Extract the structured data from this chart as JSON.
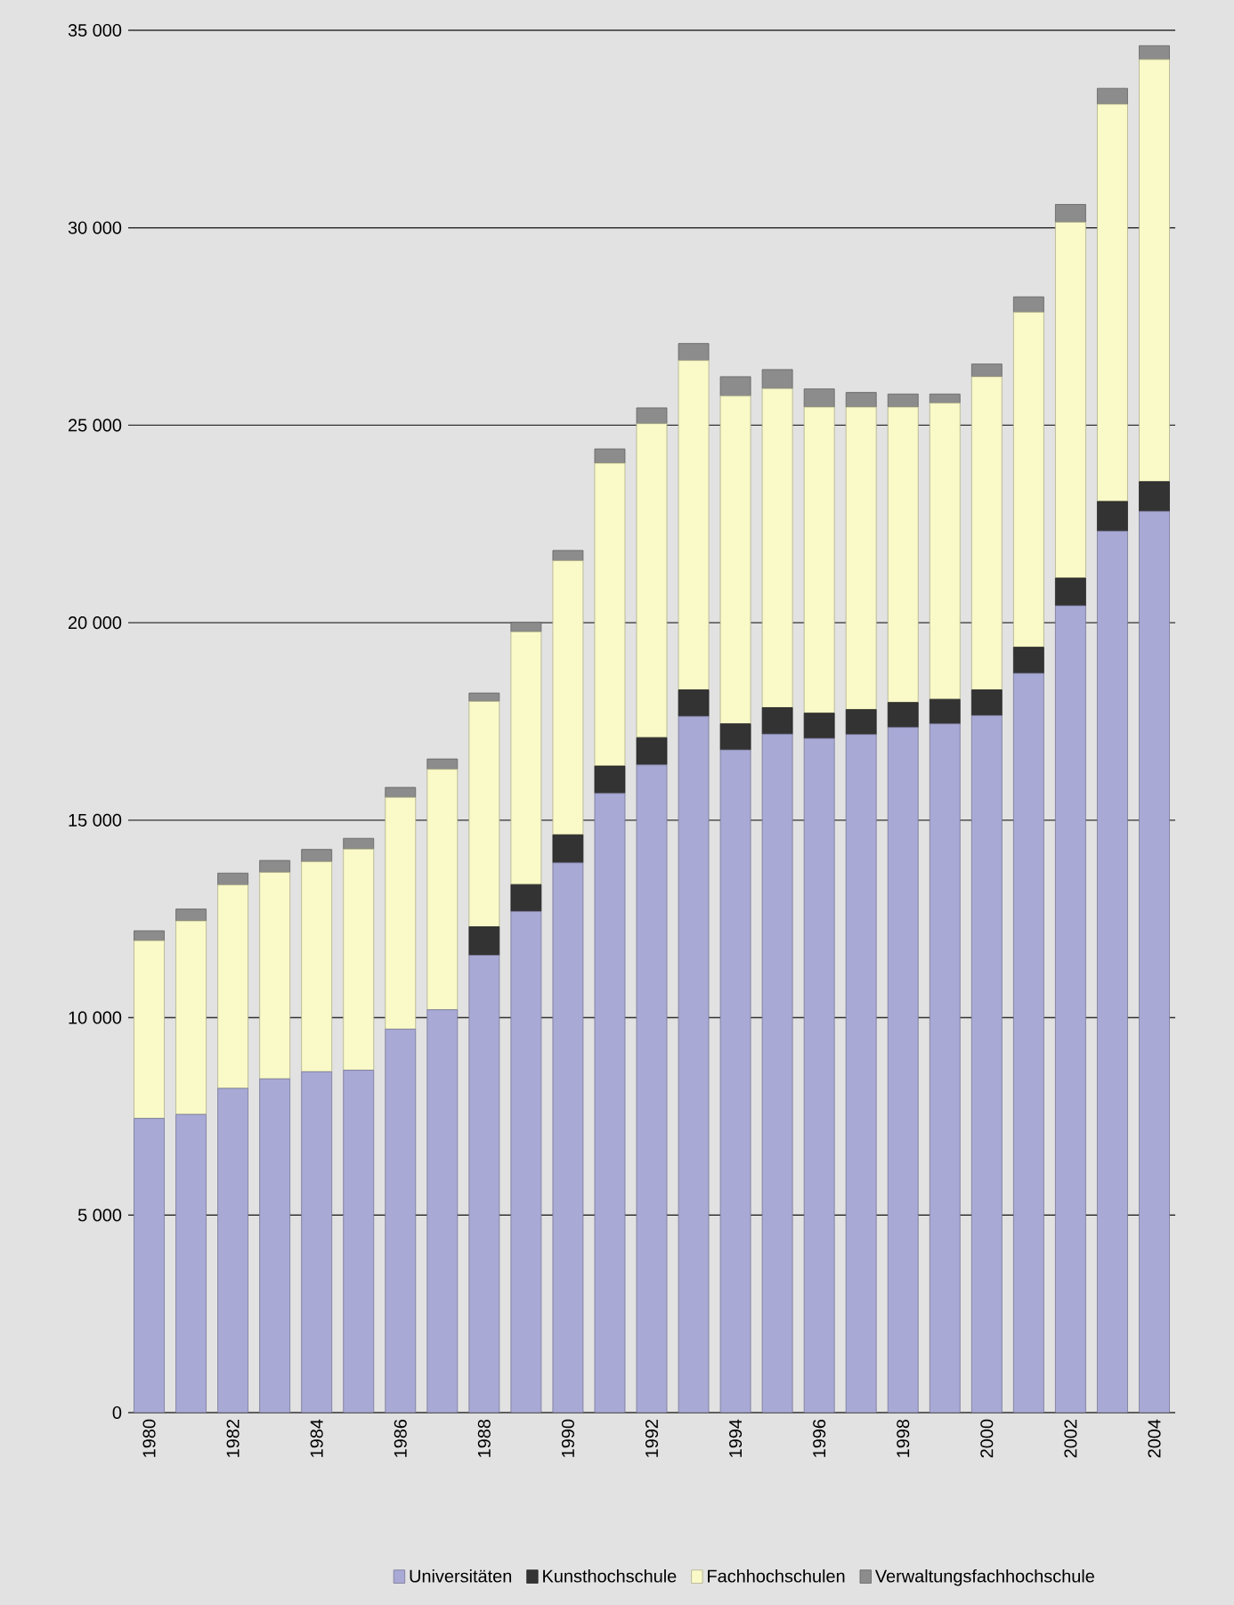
{
  "chart_data": {
    "type": "bar",
    "stacked": true,
    "grid": "y",
    "legend": "bottom",
    "categories": [
      "1980",
      null,
      "1982",
      null,
      "1984",
      null,
      "1986",
      null,
      "1988",
      null,
      "1990",
      null,
      "1992",
      null,
      "1994",
      null,
      "1996",
      null,
      "1998",
      null,
      "2000",
      null,
      "2002",
      null,
      "2004"
    ],
    "ylim": [
      0,
      35000
    ],
    "yticks": [
      0,
      {
        "value": 5000,
        "label": "5 000"
      },
      {
        "value": 10000,
        "label": "10 000"
      },
      {
        "value": 15000,
        "label": "15 000"
      },
      {
        "value": 20000,
        "label": "20 000"
      },
      {
        "value": 25000,
        "label": "25 000"
      },
      {
        "value": 30000,
        "label": "30 000"
      },
      {
        "value": 35000,
        "label": "35 000"
      }
    ],
    "series": [
      {
        "name": "Universitäten",
        "color": "#a9a9d6",
        "values": [
          7450,
          7550,
          8210,
          8450,
          8630,
          8670,
          9710,
          10200,
          11580,
          12690,
          13920,
          15680,
          16400,
          17630,
          16780,
          17180,
          17070,
          17170,
          17350,
          17440,
          17650,
          18720,
          20430,
          22320,
          22820
        ]
      },
      {
        "name": "Kunsthochschule",
        "color": "#333333",
        "values": [
          0,
          0,
          0,
          0,
          0,
          0,
          0,
          0,
          720,
          680,
          710,
          690,
          690,
          670,
          660,
          670,
          640,
          630,
          630,
          620,
          650,
          660,
          700,
          750,
          750
        ]
      },
      {
        "name": "Fachhochschulen",
        "color": "#fafac8",
        "values": [
          4500,
          4900,
          5150,
          5230,
          5320,
          5600,
          5870,
          6090,
          5710,
          6400,
          6940,
          7670,
          7950,
          8340,
          8300,
          8080,
          7750,
          7660,
          7480,
          7500,
          7930,
          8480,
          9010,
          10060,
          10690
        ]
      },
      {
        "name": "Verwaltungsfachhochschule",
        "color": "#8c8c8c",
        "values": [
          250,
          300,
          300,
          300,
          310,
          270,
          250,
          260,
          210,
          240,
          260,
          360,
          400,
          430,
          490,
          480,
          460,
          370,
          330,
          230,
          320,
          390,
          450,
          400,
          350
        ]
      }
    ]
  }
}
